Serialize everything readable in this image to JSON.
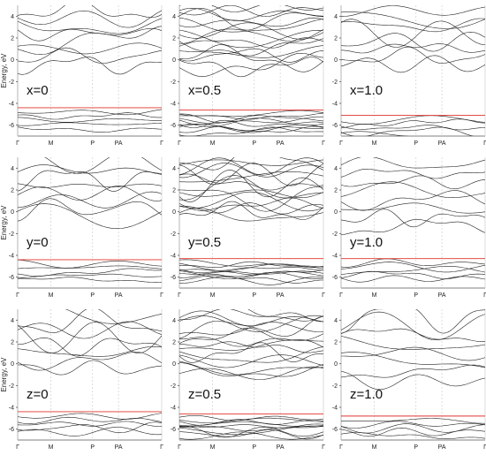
{
  "chart_data": [
    {
      "type": "line",
      "panel_label": "x=0",
      "ylabel": "Energy, eV",
      "yticks": [
        "4",
        "2",
        "0",
        "-2",
        "-4",
        "-6"
      ],
      "xticks": [
        "Γ",
        "M",
        "P",
        "PA",
        "Γ"
      ],
      "ylim": [
        -7,
        5
      ],
      "fermi_level": -4.4,
      "valence_band_max": -4.3,
      "conduction_band_min": -1.0
    },
    {
      "type": "line",
      "panel_label": "x=0.5",
      "ylabel": "",
      "yticks": [
        "4",
        "2",
        "0",
        "-2",
        "-4",
        "-6"
      ],
      "xticks": [
        "Γ",
        "M",
        "P",
        "PA",
        "Γ"
      ],
      "ylim": [
        -7,
        5
      ],
      "fermi_level": -4.6,
      "valence_band_max": -4.5,
      "conduction_band_min": -1.2
    },
    {
      "type": "line",
      "panel_label": "x=1.0",
      "ylabel": "",
      "yticks": [
        "4",
        "2",
        "0",
        "-2",
        "-4",
        "-6"
      ],
      "xticks": [
        "Γ",
        "M",
        "P",
        "PA",
        "Γ"
      ],
      "ylim": [
        -7,
        5
      ],
      "fermi_level": -5.1,
      "valence_band_max": -5.0,
      "conduction_band_min": -1.0
    },
    {
      "type": "line",
      "panel_label": "y=0",
      "ylabel": "Energy, eV",
      "yticks": [
        "4",
        "2",
        "0",
        "-2",
        "-4",
        "-6"
      ],
      "xticks": [
        "Γ",
        "M",
        "P",
        "PA",
        "Γ"
      ],
      "ylim": [
        -7,
        5
      ],
      "fermi_level": -4.4,
      "valence_band_max": -4.3,
      "conduction_band_min": -1.0
    },
    {
      "type": "line",
      "panel_label": "y=0.5",
      "ylabel": "",
      "yticks": [
        "4",
        "2",
        "0",
        "-2",
        "-4",
        "-6"
      ],
      "xticks": [
        "Γ",
        "M",
        "P",
        "PA",
        "Γ"
      ],
      "ylim": [
        -7,
        5
      ],
      "fermi_level": -4.3,
      "valence_band_max": -4.2,
      "conduction_band_min": -1.0
    },
    {
      "type": "line",
      "panel_label": "y=1.0",
      "ylabel": "",
      "yticks": [
        "4",
        "2",
        "0",
        "-2",
        "-4",
        "-6"
      ],
      "xticks": [
        "Γ",
        "M",
        "P",
        "PA",
        "Γ"
      ],
      "ylim": [
        -7,
        5
      ],
      "fermi_level": -4.3,
      "valence_band_max": -4.2,
      "conduction_band_min": -2.0
    },
    {
      "type": "line",
      "panel_label": "z=0",
      "ylabel": "Energy, eV",
      "yticks": [
        "4",
        "2",
        "0",
        "-2",
        "-4",
        "-6"
      ],
      "xticks": [
        "Γ",
        "M",
        "P",
        "PA",
        "Γ"
      ],
      "ylim": [
        -7,
        5
      ],
      "fermi_level": -4.4,
      "valence_band_max": -4.3,
      "conduction_band_min": -1.0
    },
    {
      "type": "line",
      "panel_label": "z=0.5",
      "ylabel": "",
      "yticks": [
        "4",
        "2",
        "0",
        "-2",
        "-4",
        "-6"
      ],
      "xticks": [
        "Γ",
        "M",
        "P",
        "PA",
        "Γ"
      ],
      "ylim": [
        -7,
        5
      ],
      "fermi_level": -4.6,
      "valence_band_max": -4.5,
      "conduction_band_min": -1.5
    },
    {
      "type": "line",
      "panel_label": "z=1.0",
      "ylabel": "",
      "yticks": [
        "4",
        "2",
        "0",
        "-2",
        "-4",
        "-6"
      ],
      "xticks": [
        "Γ",
        "M",
        "P",
        "PA",
        "Γ"
      ],
      "ylim": [
        -7,
        5
      ],
      "fermi_level": -4.8,
      "valence_band_max": -4.7,
      "conduction_band_min": -2.2
    }
  ]
}
